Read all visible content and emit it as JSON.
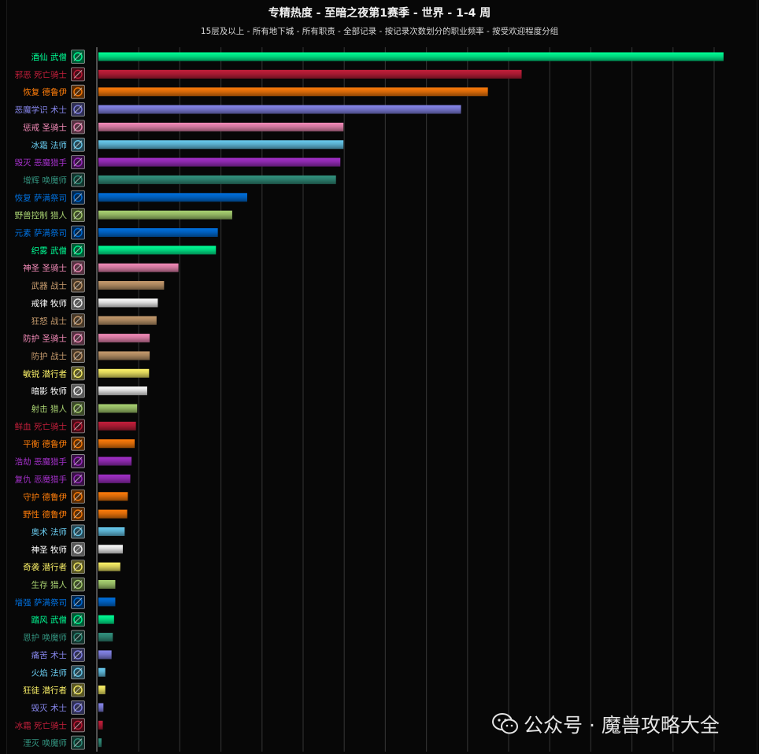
{
  "chart_data": {
    "type": "bar",
    "orientation": "horizontal",
    "title": "专精热度 - 至暗之夜第1赛季 - 世界 - 1-4 周",
    "subtitle": "15层及以上 - 所有地下城 - 所有职责 - 全部记录 - 按记录次数划分的职业频率 - 按受欢迎程度分组",
    "grid": true,
    "xlim": [
      0,
      1.13
    ],
    "categories": [
      {
        "label": "酒仙 武僧",
        "color": "#00ff96",
        "icon": "brewmaster-icon",
        "value": 1.0
      },
      {
        "label": "邪恶 死亡骑士",
        "color": "#c41f3b",
        "icon": "unholy-icon",
        "value": 0.677
      },
      {
        "label": "恢复 德鲁伊",
        "color": "#ff7d0a",
        "icon": "restoration-druid-icon",
        "value": 0.623
      },
      {
        "label": "恶魔学识 术士",
        "color": "#8787ed",
        "icon": "demonology-icon",
        "value": 0.58
      },
      {
        "label": "惩戒 圣骑士",
        "color": "#f58cba",
        "icon": "retribution-icon",
        "value": 0.392
      },
      {
        "label": "冰霜 法师",
        "color": "#69ccf0",
        "icon": "frost-mage-icon",
        "value": 0.392
      },
      {
        "label": "毁灭 恶魔猎手",
        "color": "#a330c9",
        "icon": "havoc-icon",
        "value": 0.387
      },
      {
        "label": "增辉 唤魔师",
        "color": "#33937f",
        "icon": "augmentation-icon",
        "value": 0.38
      },
      {
        "label": "恢复 萨满祭司",
        "color": "#0070de",
        "icon": "restoration-shaman-icon",
        "value": 0.238
      },
      {
        "label": "野兽控制 猎人",
        "color": "#abd473",
        "icon": "beast-mastery-icon",
        "value": 0.214
      },
      {
        "label": "元素 萨满祭司",
        "color": "#0070de",
        "icon": "elemental-icon",
        "value": 0.191
      },
      {
        "label": "织雾 武僧",
        "color": "#00ff96",
        "icon": "mistweaver-icon",
        "value": 0.188
      },
      {
        "label": "神圣 圣骑士",
        "color": "#f58cba",
        "icon": "holy-paladin-icon",
        "value": 0.128
      },
      {
        "label": "武器 战士",
        "color": "#c79c6e",
        "icon": "arms-icon",
        "value": 0.105
      },
      {
        "label": "戒律 牧师",
        "color": "#ffffff",
        "icon": "discipline-icon",
        "value": 0.095
      },
      {
        "label": "狂怒 战士",
        "color": "#c79c6e",
        "icon": "fury-icon",
        "value": 0.093
      },
      {
        "label": "防护 圣骑士",
        "color": "#f58cba",
        "icon": "protection-paladin-icon",
        "value": 0.082
      },
      {
        "label": "防护 战士",
        "color": "#c79c6e",
        "icon": "protection-warrior-icon",
        "value": 0.082
      },
      {
        "label": "敏锐 潜行者",
        "color": "#fff569",
        "icon": "subtlety-icon",
        "value": 0.081
      },
      {
        "label": "暗影 牧师",
        "color": "#ffffff",
        "icon": "shadow-icon",
        "value": 0.078
      },
      {
        "label": "射击 猎人",
        "color": "#abd473",
        "icon": "marksmanship-icon",
        "value": 0.062
      },
      {
        "label": "鲜血 死亡骑士",
        "color": "#c41f3b",
        "icon": "blood-icon",
        "value": 0.06
      },
      {
        "label": "平衡 德鲁伊",
        "color": "#ff7d0a",
        "icon": "balance-icon",
        "value": 0.058
      },
      {
        "label": "浩劫 恶魔猎手",
        "color": "#a330c9",
        "icon": "devourer-icon",
        "value": 0.053
      },
      {
        "label": "复仇 恶魔猎手",
        "color": "#a330c9",
        "icon": "vengeance-icon",
        "value": 0.051
      },
      {
        "label": "守护 德鲁伊",
        "color": "#ff7d0a",
        "icon": "guardian-icon",
        "value": 0.047
      },
      {
        "label": "野性 德鲁伊",
        "color": "#ff7d0a",
        "icon": "feral-icon",
        "value": 0.046
      },
      {
        "label": "奥术 法师",
        "color": "#69ccf0",
        "icon": "arcane-icon",
        "value": 0.042
      },
      {
        "label": "神圣 牧师",
        "color": "#ffffff",
        "icon": "holy-priest-icon",
        "value": 0.039
      },
      {
        "label": "奇袭 潜行者",
        "color": "#fff569",
        "icon": "assassination-icon",
        "value": 0.035
      },
      {
        "label": "生存 猎人",
        "color": "#abd473",
        "icon": "survival-icon",
        "value": 0.027
      },
      {
        "label": "增强 萨满祭司",
        "color": "#0070de",
        "icon": "enhancement-icon",
        "value": 0.027
      },
      {
        "label": "踏风 武僧",
        "color": "#00ff96",
        "icon": "windwalker-icon",
        "value": 0.025
      },
      {
        "label": "恩护 唤魔师",
        "color": "#33937f",
        "icon": "preservation-icon",
        "value": 0.023
      },
      {
        "label": "痛苦 术士",
        "color": "#8787ed",
        "icon": "affliction-icon",
        "value": 0.021
      },
      {
        "label": "火焰 法师",
        "color": "#69ccf0",
        "icon": "fire-icon",
        "value": 0.011
      },
      {
        "label": "狂徒 潜行者",
        "color": "#fff569",
        "icon": "outlaw-icon",
        "value": 0.011
      },
      {
        "label": "毁灭 术士",
        "color": "#8787ed",
        "icon": "destruction-icon",
        "value": 0.008
      },
      {
        "label": "冰霜 死亡骑士",
        "color": "#c41f3b",
        "icon": "frost-dk-icon",
        "value": 0.007
      },
      {
        "label": "湮灭 唤魔师",
        "color": "#33937f",
        "icon": "devastation-icon",
        "value": 0.005
      }
    ]
  },
  "watermark": {
    "icon": "wechat-icon",
    "text": "公众号 · 魔兽攻略大全"
  }
}
